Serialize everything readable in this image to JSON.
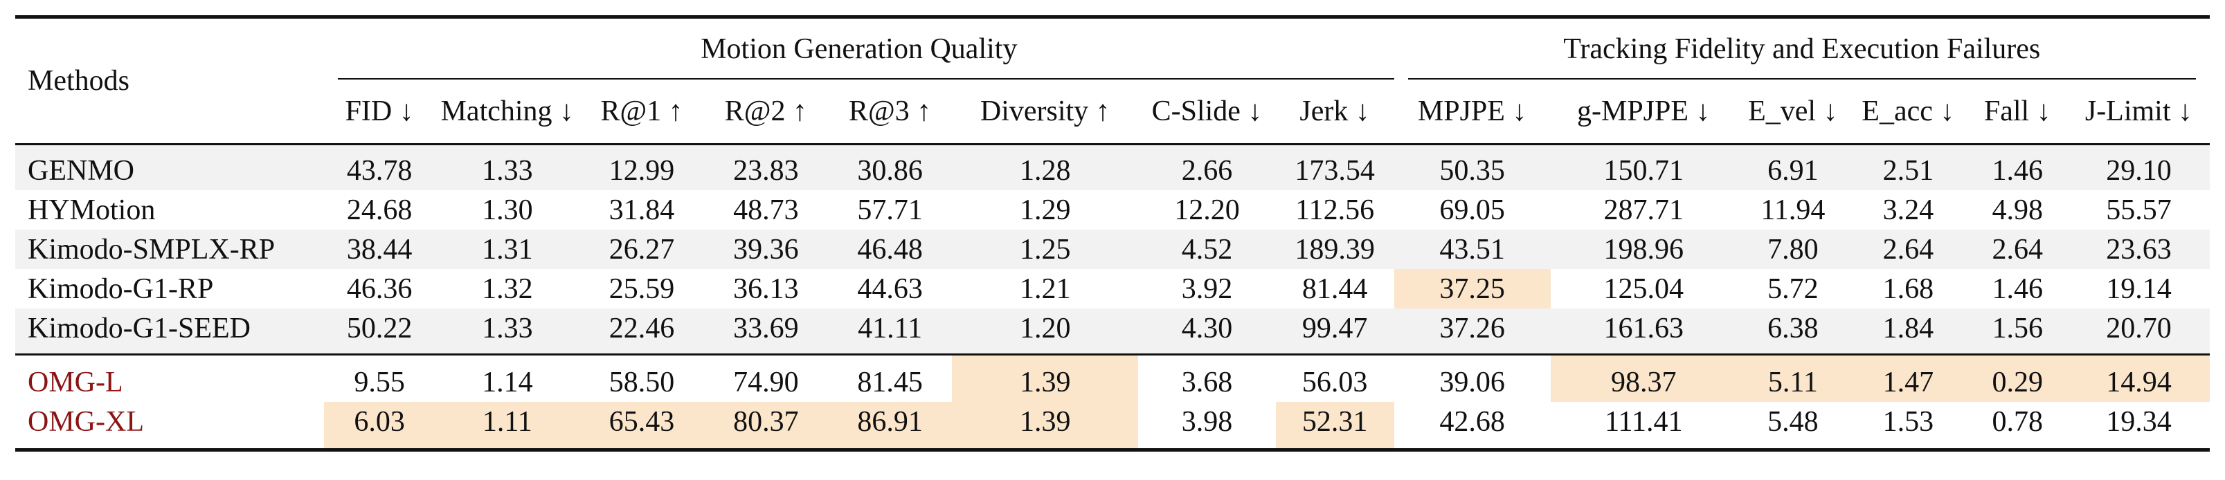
{
  "caption_fragment": "",
  "header": {
    "methods_label": "Methods",
    "group_motion": "Motion Generation Quality",
    "group_tracking": "Tracking Fidelity and Execution Failures",
    "metrics": [
      "FID ↓",
      "Matching ↓",
      "R@1 ↑",
      "R@2 ↑",
      "R@3 ↑",
      "Diversity ↑",
      "C-Slide ↓",
      "Jerk ↓",
      "MPJPE ↓",
      "g-MPJPE ↓",
      "E_vel ↓",
      "E_acc ↓",
      "Fall ↓",
      "J-Limit ↓"
    ]
  },
  "baselines": [
    {
      "name": "GENMO",
      "values": [
        "43.78",
        "1.33",
        "12.99",
        "23.83",
        "30.86",
        "1.28",
        "2.66",
        "173.54",
        "50.35",
        "150.71",
        "6.91",
        "2.51",
        "1.46",
        "29.10"
      ],
      "best": [
        6
      ]
    },
    {
      "name": "HYMotion",
      "values": [
        "24.68",
        "1.30",
        "31.84",
        "48.73",
        "57.71",
        "1.29",
        "12.20",
        "112.56",
        "69.05",
        "287.71",
        "11.94",
        "3.24",
        "4.98",
        "55.57"
      ],
      "best": []
    },
    {
      "name": "Kimodo-SMPLX-RP",
      "values": [
        "38.44",
        "1.31",
        "26.27",
        "39.36",
        "46.48",
        "1.25",
        "4.52",
        "189.39",
        "43.51",
        "198.96",
        "7.80",
        "2.64",
        "2.64",
        "23.63"
      ],
      "best": []
    },
    {
      "name": "Kimodo-G1-RP",
      "values": [
        "46.36",
        "1.32",
        "25.59",
        "36.13",
        "44.63",
        "1.21",
        "3.92",
        "81.44",
        "37.25",
        "125.04",
        "5.72",
        "1.68",
        "1.46",
        "19.14"
      ],
      "best": [
        8
      ]
    },
    {
      "name": "Kimodo-G1-SEED",
      "values": [
        "50.22",
        "1.33",
        "22.46",
        "33.69",
        "41.11",
        "1.20",
        "4.30",
        "99.47",
        "37.26",
        "161.63",
        "6.38",
        "1.84",
        "1.56",
        "20.70"
      ],
      "best": []
    }
  ],
  "ours": [
    {
      "name": "OMG-L",
      "values": [
        "9.55",
        "1.14",
        "58.50",
        "74.90",
        "81.45",
        "1.39",
        "3.68",
        "56.03",
        "39.06",
        "98.37",
        "5.11",
        "1.47",
        "0.29",
        "14.94"
      ],
      "best": [
        5,
        9,
        10,
        11,
        12,
        13
      ]
    },
    {
      "name": "OMG-XL",
      "values": [
        "6.03",
        "1.11",
        "65.43",
        "80.37",
        "86.91",
        "1.39",
        "3.98",
        "52.31",
        "42.68",
        "111.41",
        "5.48",
        "1.53",
        "0.78",
        "19.34"
      ],
      "best": [
        0,
        1,
        2,
        3,
        4,
        5,
        7
      ]
    }
  ],
  "colors": {
    "best_highlight": "#fbe6cc",
    "ours_name": "#8b1414",
    "row_shade": "#f2f2f2"
  }
}
